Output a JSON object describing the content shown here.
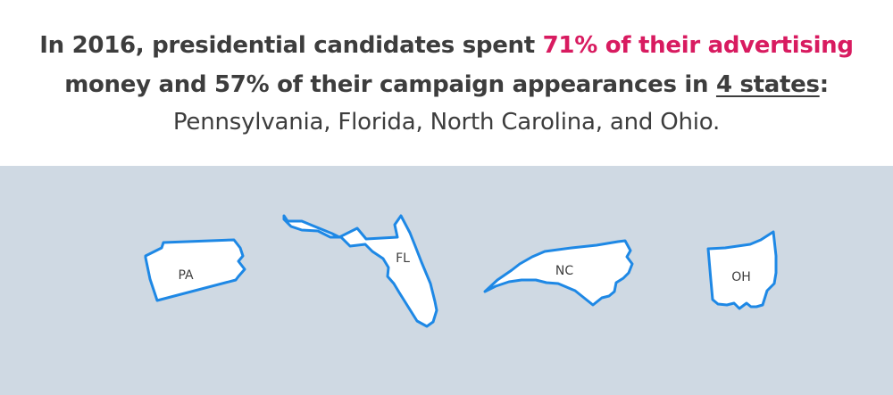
{
  "headline": {
    "line1_a": "In 2016, presidential candidates spent ",
    "line1_highlight": "71% of their advertising",
    "line2_a": "money and 57% of their campaign appearances in ",
    "line2_underlined": "4 states",
    "line2_b": ":",
    "line3": "Pennsylvania, Florida, North Carolina, and Ohio."
  },
  "colors": {
    "highlight": "#d81b60",
    "text": "#3d3d3d",
    "map_background": "#cfd9e3",
    "state_fill": "#ffffff",
    "state_outline": "#1e88e5"
  },
  "states": [
    {
      "name": "Pennsylvania",
      "abbr": "PA"
    },
    {
      "name": "Florida",
      "abbr": "FL"
    },
    {
      "name": "North Carolina",
      "abbr": "NC"
    },
    {
      "name": "Ohio",
      "abbr": "OH"
    }
  ]
}
